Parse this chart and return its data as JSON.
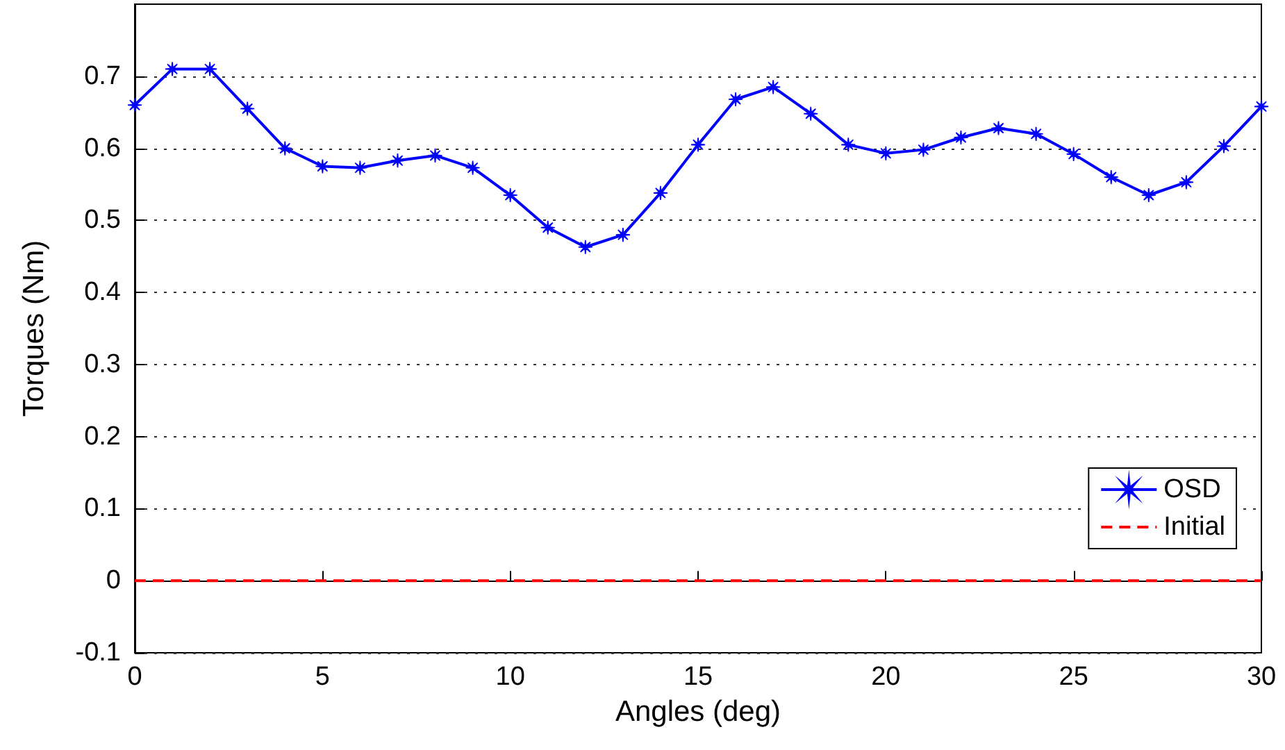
{
  "chart_data": {
    "type": "line",
    "xlabel": "Angles (deg)",
    "ylabel": "Torques (Nm)",
    "x": [
      0,
      1,
      2,
      3,
      4,
      5,
      6,
      7,
      8,
      9,
      10,
      11,
      12,
      13,
      14,
      15,
      16,
      17,
      18,
      19,
      20,
      21,
      22,
      23,
      24,
      25,
      26,
      27,
      28,
      29,
      30
    ],
    "series": [
      {
        "name": "OSD",
        "color": "#0000ff",
        "marker": "star",
        "line_style": "solid",
        "values": [
          0.66,
          0.71,
          0.71,
          0.655,
          0.6,
          0.575,
          0.573,
          0.583,
          0.59,
          0.573,
          0.535,
          0.49,
          0.463,
          0.48,
          0.538,
          0.605,
          0.668,
          0.685,
          0.648,
          0.605,
          0.593,
          0.598,
          0.615,
          0.628,
          0.62,
          0.592,
          0.56,
          0.535,
          0.553,
          0.603,
          0.658
        ]
      },
      {
        "name": "Initial",
        "color": "#ff0000",
        "marker": "none",
        "line_style": "dashed",
        "values": [
          0,
          0,
          0,
          0,
          0,
          0,
          0,
          0,
          0,
          0,
          0,
          0,
          0,
          0,
          0,
          0,
          0,
          0,
          0,
          0,
          0,
          0,
          0,
          0,
          0,
          0,
          0,
          0,
          0,
          0,
          0
        ]
      }
    ],
    "xlim": [
      0,
      30
    ],
    "xticks": [
      0,
      5,
      10,
      15,
      20,
      25,
      30
    ],
    "ylim": [
      -0.1,
      0.8
    ],
    "yticks": [
      -0.1,
      0,
      0.1,
      0.2,
      0.3,
      0.4,
      0.5,
      0.6,
      0.7
    ],
    "grid": "y",
    "legend": "bottom right"
  }
}
